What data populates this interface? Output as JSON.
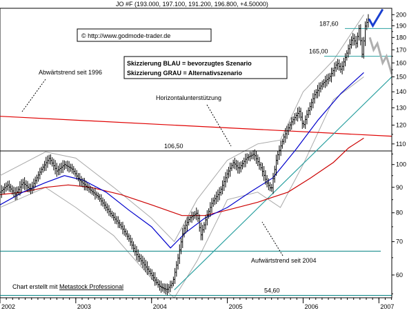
{
  "chart_data": {
    "type": "candlestick",
    "title": "JO #F (193.000, 197.100, 191.200, 196.800, +4.50000)",
    "copyright": "© http://www.godmode-trader.de",
    "legend_lines": [
      "Skizzierung BLAU = bevorzugtes Szenario",
      "Skizzierung GRAU = Alternativszenario"
    ],
    "footer_prefix": "Chart erstellt mit ",
    "footer_link": "Metastock Professional",
    "y_scale": "log",
    "ylim": [
      54,
      206
    ],
    "xlim": [
      2002.0,
      2007.17
    ],
    "grid": false,
    "y_ticks": [
      60,
      70,
      80,
      90,
      100,
      110,
      120,
      130,
      140,
      150,
      160,
      170,
      180,
      190,
      200
    ],
    "x_ticks": [
      "2002",
      "2003",
      "2004",
      "2005",
      "2006",
      "2007"
    ],
    "horizontal_levels": [
      {
        "label": "187,60",
        "value": 187.6
      },
      {
        "label": "165,00",
        "value": 165.0
      },
      {
        "label": "106,50",
        "value": 106.5
      },
      {
        "label": "",
        "value": 67.0
      },
      {
        "label": "54,60",
        "value": 54.6
      }
    ],
    "annotations": [
      {
        "text": "Abwärtstrend seit 1996"
      },
      {
        "text": "Horizontalunterstützung"
      },
      {
        "text": "Aufwärtstrend seit 2004"
      }
    ],
    "price_points": [
      [
        2002.0,
        88
      ],
      [
        2002.1,
        91
      ],
      [
        2002.2,
        87
      ],
      [
        2002.3,
        92
      ],
      [
        2002.4,
        89
      ],
      [
        2002.55,
        98
      ],
      [
        2002.65,
        103
      ],
      [
        2002.75,
        97
      ],
      [
        2002.85,
        100
      ],
      [
        2002.95,
        98
      ],
      [
        2003.05,
        93
      ],
      [
        2003.15,
        90
      ],
      [
        2003.3,
        86
      ],
      [
        2003.45,
        80
      ],
      [
        2003.6,
        75
      ],
      [
        2003.7,
        71
      ],
      [
        2003.8,
        66
      ],
      [
        2003.9,
        63
      ],
      [
        2004.0,
        60
      ],
      [
        2004.1,
        57
      ],
      [
        2004.2,
        56
      ],
      [
        2004.28,
        58
      ],
      [
        2004.35,
        65
      ],
      [
        2004.42,
        74
      ],
      [
        2004.5,
        78
      ],
      [
        2004.6,
        80
      ],
      [
        2004.65,
        72
      ],
      [
        2004.72,
        78
      ],
      [
        2004.8,
        84
      ],
      [
        2004.9,
        88
      ],
      [
        2005.0,
        96
      ],
      [
        2005.08,
        101
      ],
      [
        2005.15,
        98
      ],
      [
        2005.25,
        103
      ],
      [
        2005.35,
        105
      ],
      [
        2005.45,
        98
      ],
      [
        2005.52,
        92
      ],
      [
        2005.58,
        89
      ],
      [
        2005.65,
        103
      ],
      [
        2005.75,
        114
      ],
      [
        2005.85,
        122
      ],
      [
        2005.95,
        128
      ],
      [
        2006.0,
        119
      ],
      [
        2006.05,
        126
      ],
      [
        2006.15,
        138
      ],
      [
        2006.25,
        145
      ],
      [
        2006.35,
        150
      ],
      [
        2006.45,
        160
      ],
      [
        2006.5,
        155
      ],
      [
        2006.58,
        168
      ],
      [
        2006.65,
        180
      ],
      [
        2006.7,
        175
      ],
      [
        2006.74,
        188
      ],
      [
        2006.78,
        166
      ],
      [
        2006.82,
        190
      ],
      [
        2006.86,
        196
      ]
    ],
    "moving_average_red": [
      [
        2002.0,
        87
      ],
      [
        2002.3,
        88
      ],
      [
        2002.6,
        90
      ],
      [
        2002.9,
        91
      ],
      [
        2003.2,
        90
      ],
      [
        2003.6,
        87
      ],
      [
        2004.0,
        83
      ],
      [
        2004.4,
        79
      ],
      [
        2004.7,
        79
      ],
      [
        2005.0,
        81
      ],
      [
        2005.4,
        84
      ],
      [
        2005.8,
        88
      ],
      [
        2006.1,
        94
      ],
      [
        2006.4,
        101
      ],
      [
        2006.6,
        108
      ],
      [
        2006.8,
        113
      ]
    ],
    "moving_average_blue": [
      [
        2002.0,
        83
      ],
      [
        2002.3,
        88
      ],
      [
        2002.6,
        92
      ],
      [
        2002.85,
        95
      ],
      [
        2003.1,
        93
      ],
      [
        2003.4,
        88
      ],
      [
        2003.7,
        81
      ],
      [
        2004.0,
        75
      ],
      [
        2004.25,
        68
      ],
      [
        2004.45,
        73
      ],
      [
        2004.7,
        78
      ],
      [
        2005.0,
        82
      ],
      [
        2005.3,
        88
      ],
      [
        2005.6,
        94
      ],
      [
        2005.9,
        107
      ],
      [
        2006.2,
        123
      ],
      [
        2006.5,
        139
      ],
      [
        2006.8,
        153
      ]
    ],
    "downtrend_line": [
      [
        2002.0,
        125
      ],
      [
        2007.17,
        114
      ]
    ],
    "uptrend_line": [
      [
        2004.3,
        56
      ],
      [
        2007.17,
        150
      ]
    ],
    "bands": {
      "upper": [
        [
          2002.0,
          95
        ],
        [
          2002.6,
          106
        ],
        [
          2003.0,
          103
        ],
        [
          2003.5,
          90
        ],
        [
          2004.0,
          78
        ],
        [
          2004.3,
          70
        ],
        [
          2004.6,
          85
        ],
        [
          2005.0,
          102
        ],
        [
          2005.4,
          110
        ],
        [
          2005.7,
          112
        ],
        [
          2006.0,
          140
        ],
        [
          2006.4,
          162
        ],
        [
          2006.8,
          200
        ]
      ],
      "lower": [
        [
          2002.0,
          82
        ],
        [
          2002.6,
          90
        ],
        [
          2003.0,
          82
        ],
        [
          2003.5,
          72
        ],
        [
          2004.0,
          59
        ],
        [
          2004.3,
          54
        ],
        [
          2004.6,
          64
        ],
        [
          2005.0,
          85
        ],
        [
          2005.4,
          88
        ],
        [
          2005.7,
          82
        ],
        [
          2006.0,
          100
        ],
        [
          2006.4,
          135
        ],
        [
          2006.8,
          150
        ]
      ]
    },
    "scenario_blue": [
      [
        2006.87,
        196
      ],
      [
        2006.92,
        190
      ],
      [
        2007.05,
        205
      ]
    ],
    "scenario_gray": [
      [
        2006.88,
        180
      ],
      [
        2006.93,
        170
      ],
      [
        2006.98,
        175
      ],
      [
        2007.05,
        160
      ],
      [
        2007.1,
        165
      ],
      [
        2007.17,
        152
      ]
    ],
    "colors": {
      "downtrend": "#e00000",
      "ma_red": "#cc0000",
      "ma_blue": "#0000cc",
      "uptrend": "#2aa0a0",
      "support_lines": "#008080",
      "scenario_blue": "#1a3fd0",
      "scenario_gray": "#b0b0b0",
      "bands": "#a8a8a8"
    }
  }
}
